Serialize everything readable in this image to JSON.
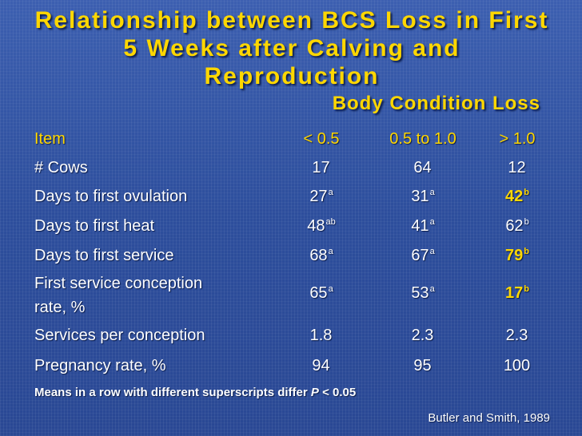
{
  "title": "Relationship between BCS Loss in First 5 Weeks after Calving and Reproduction",
  "subtitle": "Body Condition Loss",
  "header": {
    "item": "Item",
    "col1": "< 0.5",
    "col2": "0.5 to 1.0",
    "col3": "> 1.0"
  },
  "rows": [
    {
      "label": "# Cows",
      "v1": "17",
      "s1": "",
      "v2": "64",
      "s2": "",
      "v3": "12",
      "s3": ""
    },
    {
      "label": "Days to first ovulation",
      "v1": "27",
      "s1": "a",
      "v2": "31",
      "s2": "a",
      "v3": "42",
      "s3": "b"
    },
    {
      "label": "Days to first heat",
      "v1": "48",
      "s1": "ab",
      "v2": "41",
      "s2": "a",
      "v3": "62",
      "s3": "b"
    },
    {
      "label": "Days to first service",
      "v1": "68",
      "s1": "a",
      "v2": "67",
      "s2": "a",
      "v3": "79",
      "s3": "b"
    },
    {
      "label": "First service conception",
      "label2": "rate, %",
      "v1": "65",
      "s1": "a",
      "v2": "53",
      "s2": "a",
      "v3": "17",
      "s3": "b"
    },
    {
      "label": "Services per conception",
      "v1": "1.8",
      "s1": "",
      "v2": "2.3",
      "s2": "",
      "v3": "2.3",
      "s3": ""
    },
    {
      "label": "Pregnancy rate, %",
      "v1": "94",
      "s1": "",
      "v2": "95",
      "s2": "",
      "v3": "100",
      "s3": ""
    }
  ],
  "footnote": {
    "text": "Means in a row with different superscripts differ ",
    "p": "P",
    "rest": " < 0.05"
  },
  "credit": "Butler and Smith, 1989",
  "colors": {
    "background": "#2f4f9a",
    "accent": "#ffd700",
    "text": "#ffffff"
  }
}
